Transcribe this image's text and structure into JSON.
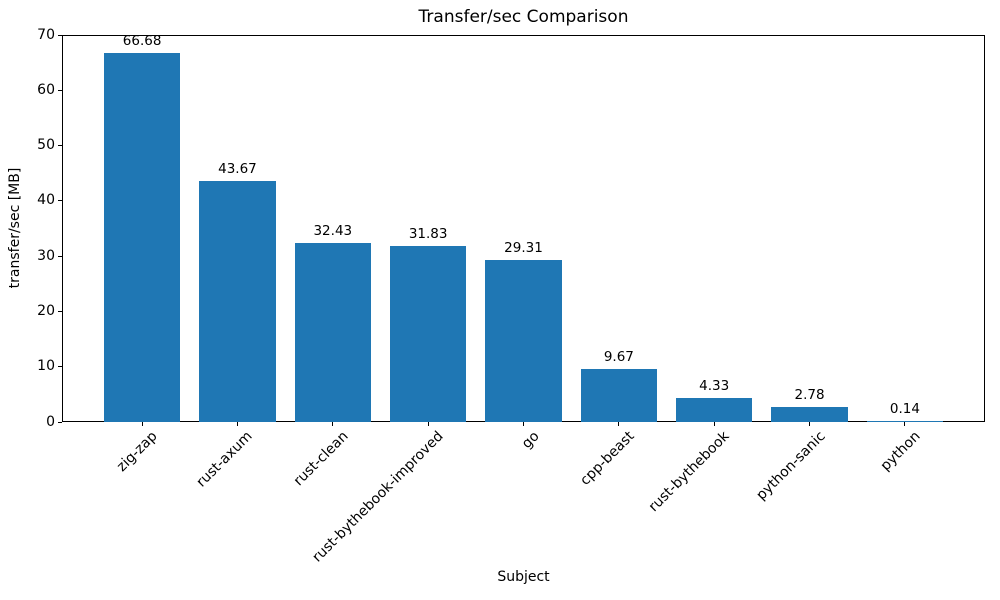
{
  "chart_data": {
    "type": "bar",
    "title": "Transfer/sec Comparison",
    "xlabel": "Subject",
    "ylabel": "transfer/sec [MB]",
    "categories": [
      "zig-zap",
      "rust-axum",
      "rust-clean",
      "rust-bythebook-improved",
      "go",
      "cpp-beast",
      "rust-bythebook",
      "python-sanic",
      "python"
    ],
    "values": [
      66.68,
      43.67,
      32.43,
      31.83,
      29.31,
      9.67,
      4.33,
      2.78,
      0.14
    ],
    "bar_labels": [
      "66.68",
      "43.67",
      "32.43",
      "31.83",
      "29.31",
      "9.67",
      "4.33",
      "2.78",
      "0.14"
    ],
    "ylim": [
      0,
      70
    ],
    "yticks": [
      0,
      10,
      20,
      30,
      40,
      50,
      60,
      70
    ],
    "x_tick_rotation": 45,
    "grid": false,
    "legend": false,
    "bar_color": "#1f77b4",
    "axis_color": "#000000",
    "text_color": "#000000",
    "background_color": "#ffffff"
  }
}
